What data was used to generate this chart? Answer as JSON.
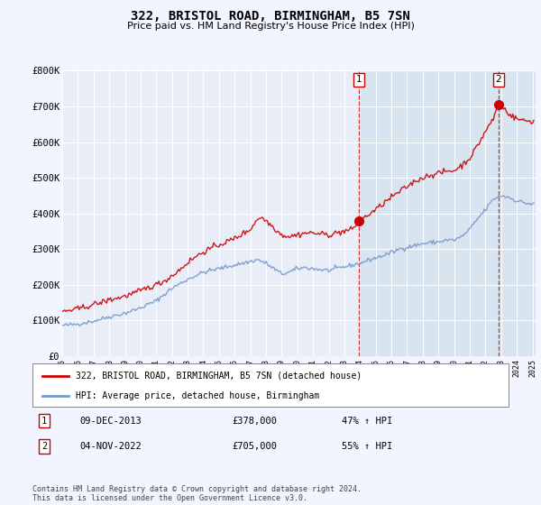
{
  "title": "322, BRISTOL ROAD, BIRMINGHAM, B5 7SN",
  "subtitle": "Price paid vs. HM Land Registry's House Price Index (HPI)",
  "background_color": "#f2f4ff",
  "plot_bg_color": "#e8edf8",
  "highlight_bg_color": "#d8e4f0",
  "red_color": "#cc0000",
  "blue_color": "#7799cc",
  "ylim": [
    0,
    800000
  ],
  "yticks": [
    0,
    100000,
    200000,
    300000,
    400000,
    500000,
    600000,
    700000,
    800000
  ],
  "ytick_labels": [
    "£0",
    "£100K",
    "£200K",
    "£300K",
    "£400K",
    "£500K",
    "£600K",
    "£700K",
    "£800K"
  ],
  "sale1_year": 2013.92,
  "sale1_price": 378000,
  "sale2_year": 2022.83,
  "sale2_price": 705000,
  "legend_line1": "322, BRISTOL ROAD, BIRMINGHAM, B5 7SN (detached house)",
  "legend_line2": "HPI: Average price, detached house, Birmingham",
  "ann1_label": "1",
  "ann1_date": "09-DEC-2013",
  "ann1_price": "£378,000",
  "ann1_hpi": "47% ↑ HPI",
  "ann2_label": "2",
  "ann2_date": "04-NOV-2022",
  "ann2_price": "£705,000",
  "ann2_hpi": "55% ↑ HPI",
  "footer": "Contains HM Land Registry data © Crown copyright and database right 2024.\nThis data is licensed under the Open Government Licence v3.0."
}
